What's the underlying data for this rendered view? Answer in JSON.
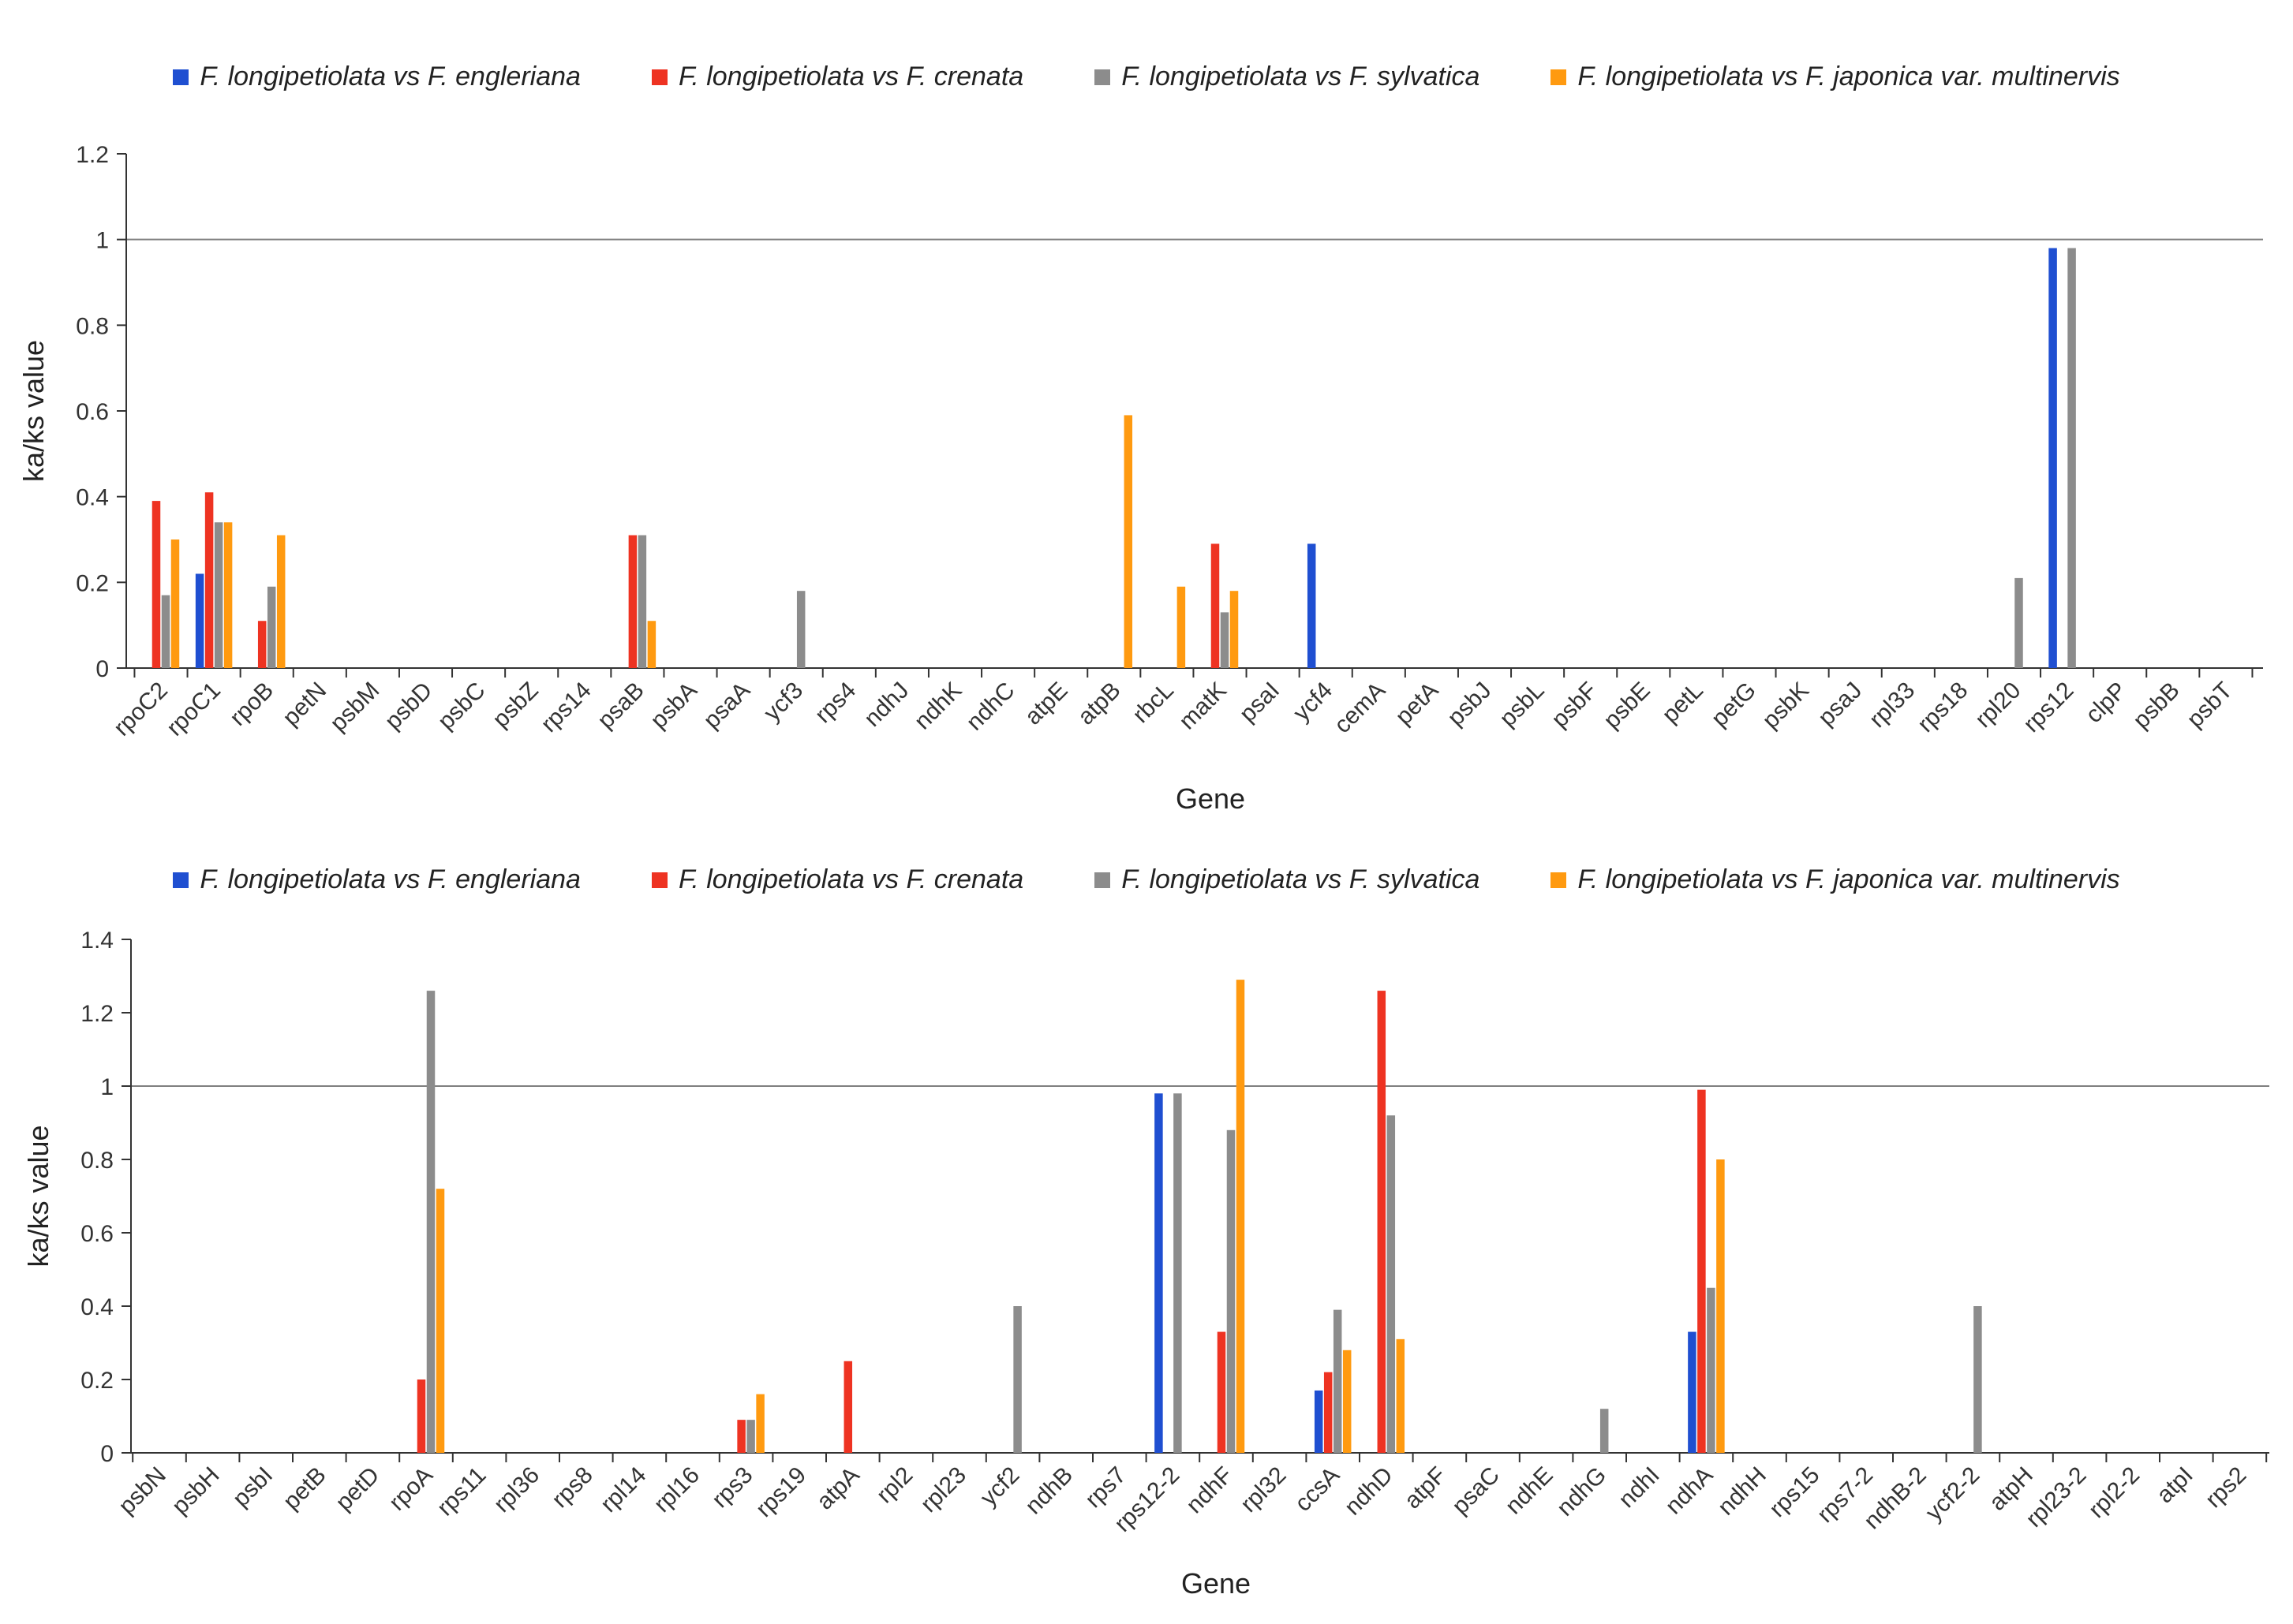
{
  "chart_data": [
    {
      "type": "bar",
      "ylabel": "ka/ks value",
      "xlabel": "Gene",
      "ylim": [
        0,
        1.2
      ],
      "yticks": [
        "0",
        "0.2",
        "0.4",
        "0.6",
        "0.8",
        "1",
        "1.2"
      ],
      "reference_line": 1,
      "legend": "top",
      "categories": [
        "rpoC2",
        "rpoC1",
        "rpoB",
        "petN",
        "psbM",
        "psbD",
        "psbC",
        "psbZ",
        "rps14",
        "psaB",
        "psbA",
        "psaA",
        "ycf3",
        "rps4",
        "ndhJ",
        "ndhK",
        "ndhC",
        "atpE",
        "atpB",
        "rbcL",
        "matK",
        "psaI",
        "ycf4",
        "cemA",
        "petA",
        "psbJ",
        "psbL",
        "psbF",
        "psbE",
        "petL",
        "petG",
        "psbK",
        "psaJ",
        "rpl33",
        "rps18",
        "rpl20",
        "rps12",
        "clpP",
        "psbB",
        "psbT"
      ],
      "series": [
        {
          "name": "F. longipetiolata vs F. engleriana",
          "color": "#1f4fd1",
          "values": [
            0,
            0.22,
            0,
            0,
            0,
            0,
            0,
            0,
            0,
            0,
            0,
            0,
            0,
            0,
            0,
            0,
            0,
            0,
            0,
            0,
            0,
            0,
            0.29,
            0,
            0,
            0,
            0,
            0,
            0,
            0,
            0,
            0,
            0,
            0,
            0,
            0,
            0.98,
            0,
            0,
            0
          ]
        },
        {
          "name": "F. longipetiolata vs F. crenata",
          "color": "#ee3322",
          "values": [
            0.39,
            0.41,
            0.11,
            0,
            0,
            0,
            0,
            0,
            0,
            0.31,
            0,
            0,
            0,
            0,
            0,
            0,
            0,
            0,
            0,
            0,
            0.29,
            0,
            0,
            0,
            0,
            0,
            0,
            0,
            0,
            0,
            0,
            0,
            0,
            0,
            0,
            0,
            0,
            0,
            0,
            0
          ]
        },
        {
          "name": "F. longipetiolata vs F. sylvatica",
          "color": "#8c8c8c",
          "values": [
            0.17,
            0.34,
            0.19,
            0,
            0,
            0,
            0,
            0,
            0,
            0.31,
            0,
            0,
            0.18,
            0,
            0,
            0,
            0,
            0,
            0,
            0,
            0.13,
            0,
            0,
            0,
            0,
            0,
            0,
            0,
            0,
            0,
            0,
            0,
            0,
            0,
            0,
            0.21,
            0.98,
            0,
            0,
            0
          ]
        },
        {
          "name": "F. longipetiolata vs F. japonica var. multinervis",
          "color": "#ff9a10",
          "values": [
            0.3,
            0.34,
            0.31,
            0,
            0,
            0,
            0,
            0,
            0,
            0.11,
            0,
            0,
            0,
            0,
            0,
            0,
            0,
            0,
            0.59,
            0.19,
            0.18,
            0,
            0,
            0,
            0,
            0,
            0,
            0,
            0,
            0,
            0,
            0,
            0,
            0,
            0,
            0,
            0,
            0,
            0,
            0
          ]
        }
      ]
    },
    {
      "type": "bar",
      "ylabel": "ka/ks value",
      "xlabel": "Gene",
      "ylim": [
        0,
        1.4
      ],
      "yticks": [
        "0",
        "0.2",
        "0.4",
        "0.6",
        "0.8",
        "1",
        "1.2",
        "1.4"
      ],
      "reference_line": 1,
      "legend": "top",
      "categories": [
        "psbN",
        "psbH",
        "psbI",
        "petB",
        "petD",
        "rpoA",
        "rps11",
        "rpl36",
        "rps8",
        "rpl14",
        "rpl16",
        "rps3",
        "rps19",
        "atpA",
        "rpl2",
        "rpl23",
        "ycf2",
        "ndhB",
        "rps7",
        "rps12-2",
        "ndhF",
        "rpl32",
        "ccsA",
        "ndhD",
        "atpF",
        "psaC",
        "ndhE",
        "ndhG",
        "ndhI",
        "ndhA",
        "ndhH",
        "rps15",
        "rps7-2",
        "ndhB-2",
        "ycf2-2",
        "atpH",
        "rpl23-2",
        "rpl2-2",
        "atpI",
        "rps2"
      ],
      "series": [
        {
          "name": "F. longipetiolata vs F. engleriana",
          "color": "#1f4fd1",
          "values": [
            0,
            0,
            0,
            0,
            0,
            0,
            0,
            0,
            0,
            0,
            0,
            0,
            0,
            0,
            0,
            0,
            0,
            0,
            0,
            0.98,
            0,
            0,
            0.17,
            0,
            0,
            0,
            0,
            0,
            0,
            0.33,
            0,
            0,
            0,
            0,
            0,
            0,
            0,
            0,
            0,
            0
          ]
        },
        {
          "name": "F. longipetiolata vs F. crenata",
          "color": "#ee3322",
          "values": [
            0,
            0,
            0,
            0,
            0,
            0.2,
            0,
            0,
            0,
            0,
            0,
            0.09,
            0,
            0.25,
            0,
            0,
            0,
            0,
            0,
            0,
            0.33,
            0,
            0.22,
            1.26,
            0,
            0,
            0,
            0,
            0,
            0.99,
            0,
            0,
            0,
            0,
            0,
            0,
            0,
            0,
            0,
            0
          ]
        },
        {
          "name": "F. longipetiolata vs F. sylvatica",
          "color": "#8c8c8c",
          "values": [
            0,
            0,
            0,
            0,
            0,
            1.26,
            0,
            0,
            0,
            0,
            0,
            0.09,
            0,
            0,
            0,
            0,
            0.4,
            0,
            0,
            0.98,
            0.88,
            0,
            0.39,
            0.92,
            0,
            0,
            0,
            0.12,
            0,
            0.45,
            0,
            0,
            0,
            0,
            0.4,
            0,
            0,
            0,
            0,
            0
          ]
        },
        {
          "name": "F. longipetiolata vs F. japonica var. multinervis",
          "color": "#ff9a10",
          "values": [
            0,
            0,
            0,
            0,
            0,
            0.72,
            0,
            0,
            0,
            0,
            0,
            0.16,
            0,
            0,
            0,
            0,
            0,
            0,
            0,
            0,
            1.29,
            0,
            0.28,
            0.31,
            0,
            0,
            0,
            0,
            0,
            0.8,
            0,
            0,
            0,
            0,
            0,
            0,
            0,
            0,
            0,
            0
          ]
        }
      ]
    }
  ]
}
